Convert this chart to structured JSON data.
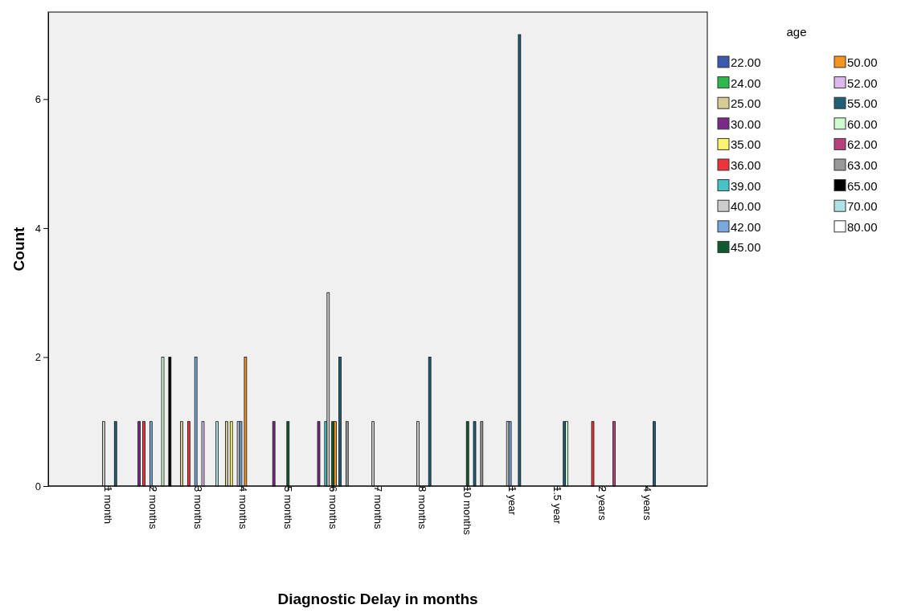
{
  "chart_data": {
    "type": "bar",
    "xlabel": "Diagnostic Delay in months",
    "ylabel": "Count",
    "legend_title": "age",
    "legend": "top right",
    "categories": [
      "1 month",
      "2 months",
      "3 months",
      "4 months",
      "5 months",
      "6 months",
      "7 months",
      "8 months",
      "10 months",
      "1 year",
      "1.5 year",
      "2 years",
      "4 years"
    ],
    "ylim": [
      0,
      7.35
    ],
    "yticks": [
      0,
      2,
      4,
      6
    ],
    "series": [
      {
        "name": "22.00",
        "color": "#3a5bad",
        "values": [
          null,
          null,
          null,
          null,
          null,
          null,
          null,
          null,
          null,
          null,
          null,
          null,
          null
        ]
      },
      {
        "name": "24.00",
        "color": "#2db84b",
        "values": [
          null,
          null,
          null,
          null,
          null,
          null,
          null,
          null,
          null,
          null,
          null,
          null,
          null
        ]
      },
      {
        "name": "25.00",
        "color": "#d4cc94",
        "values": [
          null,
          null,
          1,
          1,
          null,
          null,
          null,
          null,
          null,
          null,
          null,
          null,
          null
        ]
      },
      {
        "name": "30.00",
        "color": "#7a2a86",
        "values": [
          null,
          1,
          null,
          null,
          1,
          1,
          null,
          null,
          null,
          null,
          null,
          null,
          null
        ]
      },
      {
        "name": "35.00",
        "color": "#fbf46e",
        "values": [
          null,
          null,
          null,
          1,
          null,
          null,
          null,
          null,
          null,
          null,
          null,
          null,
          null
        ]
      },
      {
        "name": "36.00",
        "color": "#f0323a",
        "values": [
          null,
          1,
          1,
          null,
          null,
          null,
          null,
          null,
          null,
          null,
          null,
          1,
          null
        ]
      },
      {
        "name": "39.00",
        "color": "#46c3c6",
        "values": [
          null,
          null,
          null,
          null,
          null,
          1,
          null,
          null,
          null,
          null,
          null,
          null,
          null
        ]
      },
      {
        "name": "40.00",
        "color": "#cccccc",
        "values": [
          1,
          null,
          null,
          1,
          null,
          3,
          1,
          1,
          null,
          1,
          null,
          null,
          null
        ]
      },
      {
        "name": "42.00",
        "color": "#78a8dc",
        "values": [
          null,
          1,
          2,
          1,
          null,
          null,
          null,
          null,
          null,
          1,
          null,
          null,
          null
        ]
      },
      {
        "name": "45.00",
        "color": "#0e5a2e",
        "values": [
          null,
          null,
          null,
          null,
          1,
          1,
          null,
          null,
          1,
          null,
          null,
          null,
          null
        ]
      },
      {
        "name": "50.00",
        "color": "#f5941f",
        "values": [
          null,
          null,
          null,
          2,
          null,
          1,
          null,
          null,
          null,
          null,
          null,
          null,
          null
        ]
      },
      {
        "name": "52.00",
        "color": "#ddb8ec",
        "values": [
          null,
          null,
          1,
          null,
          null,
          null,
          null,
          null,
          null,
          null,
          null,
          null,
          null
        ]
      },
      {
        "name": "55.00",
        "color": "#1f6076",
        "values": [
          1,
          null,
          null,
          null,
          null,
          2,
          null,
          2,
          1,
          7,
          1,
          null,
          1
        ]
      },
      {
        "name": "60.00",
        "color": "#cefcce",
        "values": [
          null,
          2,
          null,
          null,
          null,
          null,
          null,
          null,
          null,
          null,
          1,
          null,
          null
        ]
      },
      {
        "name": "62.00",
        "color": "#b8407c",
        "values": [
          null,
          null,
          null,
          null,
          null,
          null,
          null,
          null,
          null,
          null,
          null,
          1,
          null
        ]
      },
      {
        "name": "63.00",
        "color": "#999999",
        "values": [
          null,
          null,
          null,
          null,
          null,
          1,
          null,
          null,
          1,
          null,
          null,
          null,
          null
        ]
      },
      {
        "name": "65.00",
        "color": "#000000",
        "values": [
          null,
          2,
          null,
          null,
          null,
          null,
          null,
          null,
          null,
          null,
          null,
          null,
          null
        ]
      },
      {
        "name": "70.00",
        "color": "#aee3e6",
        "values": [
          null,
          null,
          1,
          null,
          null,
          null,
          null,
          null,
          null,
          null,
          null,
          null,
          null
        ]
      },
      {
        "name": "80.00",
        "color": "#ffffff",
        "values": [
          null,
          null,
          null,
          null,
          null,
          null,
          null,
          null,
          null,
          null,
          null,
          null,
          null
        ]
      }
    ]
  }
}
